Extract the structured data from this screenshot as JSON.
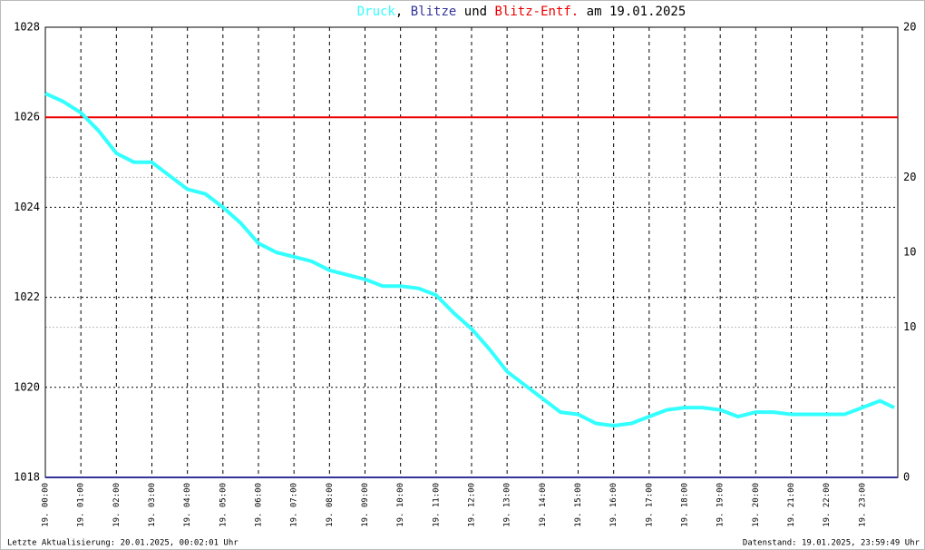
{
  "chart_data": {
    "type": "line",
    "title_connectors": [
      ",",
      "und",
      "am 19.01.2025"
    ],
    "x": null,
    "xlim": [
      0,
      24
    ],
    "xticks": [
      {
        "value": 0,
        "label": "19. 00:00"
      },
      {
        "value": 1,
        "label": "19. 01:00"
      },
      {
        "value": 2,
        "label": "19. 02:00"
      },
      {
        "value": 3,
        "label": "19. 03:00"
      },
      {
        "value": 4,
        "label": "19. 04:00"
      },
      {
        "value": 5,
        "label": "19. 05:00"
      },
      {
        "value": 6,
        "label": "19. 06:00"
      },
      {
        "value": 7,
        "label": "19. 07:00"
      },
      {
        "value": 8,
        "label": "19. 08:00"
      },
      {
        "value": 9,
        "label": "19. 09:00"
      },
      {
        "value": 10,
        "label": "19. 10:00"
      },
      {
        "value": 11,
        "label": "19. 11:00"
      },
      {
        "value": 12,
        "label": "19. 12:00"
      },
      {
        "value": 13,
        "label": "19. 13:00"
      },
      {
        "value": 14,
        "label": "19. 14:00"
      },
      {
        "value": 15,
        "label": "19. 15:00"
      },
      {
        "value": 16,
        "label": "19. 16:00"
      },
      {
        "value": 17,
        "label": "19. 17:00"
      },
      {
        "value": 18,
        "label": "19. 18:00"
      },
      {
        "value": 19,
        "label": "19. 19:00"
      },
      {
        "value": 20,
        "label": "19. 20:00"
      },
      {
        "value": 21,
        "label": "19. 21:00"
      },
      {
        "value": 22,
        "label": "19. 22:00"
      },
      {
        "value": 23,
        "label": "19. 23:00"
      }
    ],
    "ylim": [
      1018,
      1028
    ],
    "yticks": [
      1018,
      1020,
      1022,
      1024,
      1026,
      1028
    ],
    "y2lim": [
      0,
      20
    ],
    "y2ticks": [
      0,
      10,
      20
    ],
    "y3lim": [
      0,
      30
    ],
    "y3ticks": [
      10,
      20
    ],
    "y3color": "#cc0000",
    "grid": true,
    "series": [
      {
        "name": "Druck",
        "color": "#33ffff",
        "axis": "y",
        "x": [
          0,
          0.5,
          1,
          1.5,
          2,
          2.5,
          3,
          3.5,
          4,
          4.5,
          5,
          5.5,
          6,
          6.5,
          7,
          7.5,
          8,
          8.5,
          9,
          9.5,
          10,
          10.5,
          11,
          11.5,
          12,
          12.5,
          13,
          13.5,
          14,
          14.5,
          15,
          15.5,
          16,
          16.5,
          17,
          17.5,
          18,
          18.5,
          19,
          19.5,
          20,
          20.5,
          21,
          21.5,
          22,
          22.5,
          23,
          23.5,
          23.9
        ],
        "values": [
          1026.53,
          1026.35,
          1026.1,
          1025.7,
          1025.2,
          1025.0,
          1025.0,
          1024.7,
          1024.4,
          1024.3,
          1024.0,
          1023.65,
          1023.2,
          1023.0,
          1022.9,
          1022.8,
          1022.6,
          1022.5,
          1022.4,
          1022.25,
          1022.25,
          1022.2,
          1022.05,
          1021.65,
          1021.3,
          1020.85,
          1020.35,
          1020.05,
          1019.75,
          1019.45,
          1019.4,
          1019.2,
          1019.15,
          1019.2,
          1019.35,
          1019.5,
          1019.55,
          1019.55,
          1019.5,
          1019.35,
          1019.45,
          1019.45,
          1019.4,
          1019.4,
          1019.4,
          1019.4,
          1019.55,
          1019.7,
          1019.55
        ]
      },
      {
        "name": "Blitze",
        "color": "#333399",
        "axis": "y2",
        "x": [
          0,
          24
        ],
        "values": [
          0,
          0
        ]
      },
      {
        "name": "Blitz-Entf.",
        "color": "#ee0000",
        "axis": "y3",
        "x": [
          0,
          24
        ],
        "values": [
          24,
          24
        ]
      }
    ],
    "footer_left": "Letzte Aktualisierung: 20.01.2025, 00:02:01 Uhr",
    "footer_right": "Datenstand: 19.01.2025, 23:59:49 Uhr"
  }
}
